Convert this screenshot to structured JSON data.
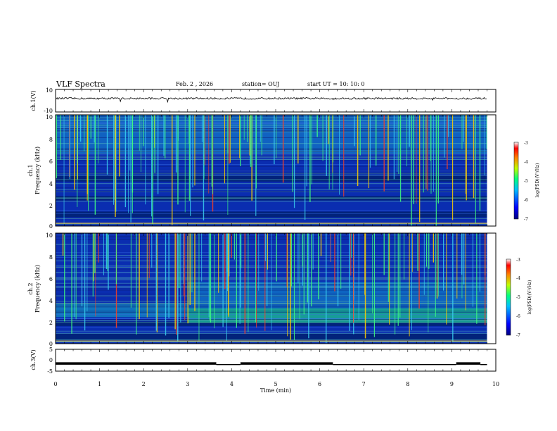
{
  "header": {
    "title": "VLF Spectra",
    "date": "Feb. 2 , 2026",
    "station": "station= OUJ",
    "start_ut": "start  UT =   10: 10: 0"
  },
  "chart_data": [
    {
      "type": "line",
      "name": "ch1-waveform",
      "ylabel": "ch.1(V)",
      "ylim": [
        -10,
        10
      ],
      "yticks": [
        "10",
        "-10"
      ],
      "baseline": 2,
      "x_range": [
        0,
        9.8
      ]
    },
    {
      "type": "heatmap",
      "name": "ch1-spectrogram",
      "ylabel": "ch.1\nFrequency (kHz)",
      "ylim": [
        0,
        10
      ],
      "yticks": [
        "10",
        "8",
        "6",
        "4",
        "2",
        "0"
      ],
      "colorbar": {
        "label": "log(PSD)(V²/Hz)",
        "range": [
          -7,
          -3
        ],
        "ticks": [
          "-3",
          "-4",
          "-5",
          "-6",
          "-7"
        ]
      }
    },
    {
      "type": "heatmap",
      "name": "ch2-spectrogram",
      "ylabel": "ch.2\nFrequency (kHz)",
      "ylim": [
        0,
        10
      ],
      "yticks": [
        "10",
        "8",
        "6",
        "4",
        "2",
        "0"
      ],
      "colorbar": {
        "label": "log(PSD)(V²/Hz)",
        "range": [
          -7,
          -3
        ],
        "ticks": [
          "-3",
          "-4",
          "-5",
          "-6",
          "-7"
        ]
      }
    },
    {
      "type": "line",
      "name": "ch3-signal",
      "ylabel": "ch.3(V)",
      "ylim": [
        -5,
        5
      ],
      "yticks": [
        "5",
        "0",
        "-5"
      ],
      "segments": [
        {
          "x": [
            0,
            3.65
          ],
          "y": -1.5
        },
        {
          "x": [
            3.65,
            4.2
          ],
          "y": -2
        },
        {
          "x": [
            4.2,
            6.3
          ],
          "y": -1.5
        },
        {
          "x": [
            6.3,
            9.1
          ],
          "y": -2
        },
        {
          "x": [
            9.1,
            9.65
          ],
          "y": -1.5
        },
        {
          "x": [
            9.65,
            9.8
          ],
          "y": -2
        }
      ]
    }
  ],
  "xaxis": {
    "label": "Time (min)",
    "range": [
      0,
      10
    ],
    "ticks": [
      "0",
      "1",
      "2",
      "3",
      "4",
      "5",
      "6",
      "7",
      "8",
      "9",
      "10"
    ]
  }
}
